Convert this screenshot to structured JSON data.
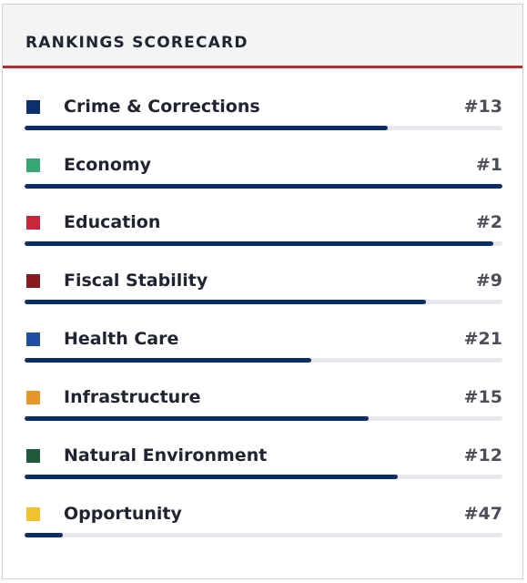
{
  "card": {
    "title": "RANKINGS SCORECARD"
  },
  "colors": {
    "accent_underline": "#b22d2d",
    "bar_fill": "#0b2d6b",
    "bar_track": "#e6e8eb"
  },
  "rankings": [
    {
      "label": "Crime & Corrections",
      "rank": "#13",
      "swatch": "#0c2f6e",
      "bar_fraction": 0.76
    },
    {
      "label": "Economy",
      "rank": "#1",
      "swatch": "#34a774",
      "bar_fraction": 1.0
    },
    {
      "label": "Education",
      "rank": "#2",
      "swatch": "#c8263a",
      "bar_fraction": 0.98
    },
    {
      "label": "Fiscal Stability",
      "rank": "#9",
      "swatch": "#8a1a1f",
      "bar_fraction": 0.84
    },
    {
      "label": "Health Care",
      "rank": "#21",
      "swatch": "#1f4fa0",
      "bar_fraction": 0.6
    },
    {
      "label": "Infrastructure",
      "rank": "#15",
      "swatch": "#e6952a",
      "bar_fraction": 0.72
    },
    {
      "label": "Natural Environment",
      "rank": "#12",
      "swatch": "#1f5a3a",
      "bar_fraction": 0.78
    },
    {
      "label": "Opportunity",
      "rank": "#47",
      "swatch": "#f2c12e",
      "bar_fraction": 0.08
    }
  ]
}
